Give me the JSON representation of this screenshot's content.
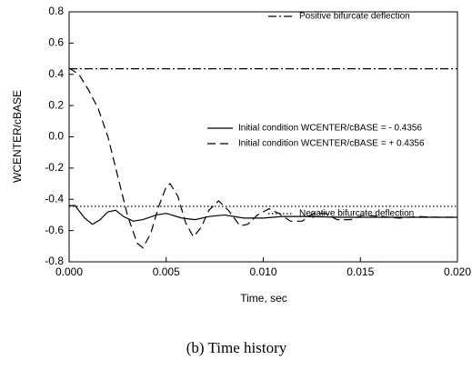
{
  "chart_data": {
    "type": "line",
    "x_label": "Time, sec",
    "y_label": "WCENTER/cBASE",
    "caption": "(b) Time history",
    "xlim": [
      0,
      0.02
    ],
    "xticks": [
      {
        "value": 0,
        "label": "0.000"
      },
      {
        "value": 0.005,
        "label": "0.005"
      },
      {
        "value": 0.01,
        "label": "0.010"
      },
      {
        "value": 0.015,
        "label": "0.015"
      },
      {
        "value": 0.02,
        "label": "0.020"
      }
    ],
    "ylim": [
      -0.8,
      0.8
    ],
    "yticks": [
      -0.8,
      -0.6,
      -0.4,
      -0.2,
      {
        "value": 0,
        "label": "0.0"
      },
      0.2,
      0.4,
      0.6,
      0.8
    ],
    "series": [
      {
        "name": "Positive bifurcate deflection",
        "color": "#000000",
        "dash": "dashdot",
        "x": [
          0,
          0.02
        ],
        "values": [
          0.4356,
          0.4356
        ]
      },
      {
        "name": "Initial condition WCENTER/cBASE = - 0.4356",
        "color": "#000000",
        "dash": "solid",
        "x": [
          0,
          0.0003,
          0.0008,
          0.0012,
          0.0016,
          0.002,
          0.0024,
          0.0028,
          0.0033,
          0.0038,
          0.0045,
          0.005,
          0.0058,
          0.0065,
          0.0072,
          0.008,
          0.009,
          0.01,
          0.011,
          0.012,
          0.014,
          0.016,
          0.02
        ],
        "values": [
          -0.44,
          -0.44,
          -0.52,
          -0.56,
          -0.53,
          -0.48,
          -0.47,
          -0.51,
          -0.54,
          -0.53,
          -0.5,
          -0.49,
          -0.52,
          -0.53,
          -0.51,
          -0.5,
          -0.52,
          -0.52,
          -0.51,
          -0.51,
          -0.515,
          -0.515,
          -0.515
        ]
      },
      {
        "name": "Initial condition WCENTER/cBASE = + 0.4356",
        "color": "#000000",
        "dash": "dash",
        "x": [
          0,
          0.0005,
          0.001,
          0.0015,
          0.002,
          0.0025,
          0.003,
          0.0035,
          0.0038,
          0.0042,
          0.0046,
          0.005,
          0.0052,
          0.0056,
          0.006,
          0.0064,
          0.0068,
          0.0072,
          0.0077,
          0.0082,
          0.0088,
          0.0092,
          0.0097,
          0.0103,
          0.0108,
          0.0114,
          0.012,
          0.0126,
          0.0132,
          0.0138,
          0.0145,
          0.0152,
          0.016,
          0.017,
          0.018,
          0.019,
          0.02
        ],
        "values": [
          0.44,
          0.4,
          0.3,
          0.18,
          0.0,
          -0.25,
          -0.5,
          -0.68,
          -0.71,
          -0.62,
          -0.45,
          -0.32,
          -0.3,
          -0.38,
          -0.55,
          -0.64,
          -0.58,
          -0.47,
          -0.41,
          -0.47,
          -0.57,
          -0.56,
          -0.5,
          -0.46,
          -0.49,
          -0.54,
          -0.54,
          -0.49,
          -0.49,
          -0.53,
          -0.53,
          -0.5,
          -0.51,
          -0.52,
          -0.51,
          -0.515,
          -0.515
        ]
      },
      {
        "name": "Negative bifurcate deflection",
        "color": "#000000",
        "dash": "dot",
        "x": [
          0,
          0.02
        ],
        "values": [
          -0.445,
          -0.445
        ]
      }
    ]
  }
}
